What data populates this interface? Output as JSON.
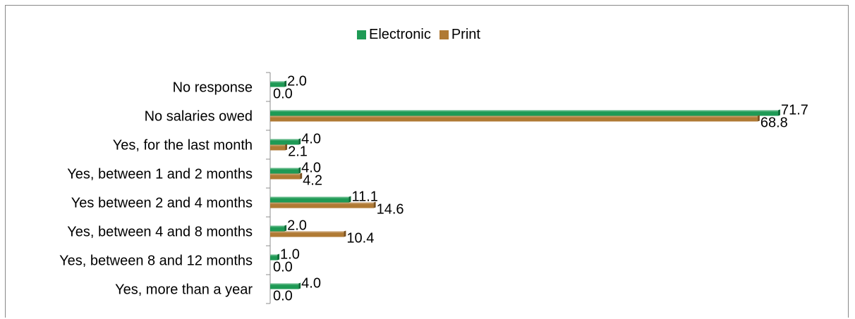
{
  "chart_data": {
    "type": "bar",
    "orientation": "horizontal",
    "categories": [
      "No response",
      "No salaries owed",
      "Yes, for the last month",
      "Yes, between 1 and 2 months",
      "Yes between 2 and 4 months",
      "Yes, between 4 and 8 months",
      "Yes, between 8 and 12 months",
      "Yes, more than a year"
    ],
    "series": [
      {
        "name": "Electronic",
        "values": [
          2.0,
          71.7,
          4.0,
          4.0,
          11.1,
          2.0,
          1.0,
          4.0
        ],
        "labels": [
          "2.0",
          "71.7",
          "4.0",
          "4.0",
          "11.1",
          "2.0",
          "1.0",
          "4.0"
        ]
      },
      {
        "name": "Print",
        "values": [
          0.0,
          68.8,
          2.1,
          4.2,
          14.6,
          10.4,
          0.0,
          0.0
        ],
        "labels": [
          "0.0",
          "68.8",
          "2.1",
          "4.2",
          "14.6",
          "10.4",
          "0.0",
          "0.0"
        ]
      }
    ],
    "xlim": [
      0,
      80
    ],
    "legend_position": "top",
    "grid": false
  },
  "colors": {
    "Electronic": "#1e9a55",
    "Print": "#b07a34"
  }
}
